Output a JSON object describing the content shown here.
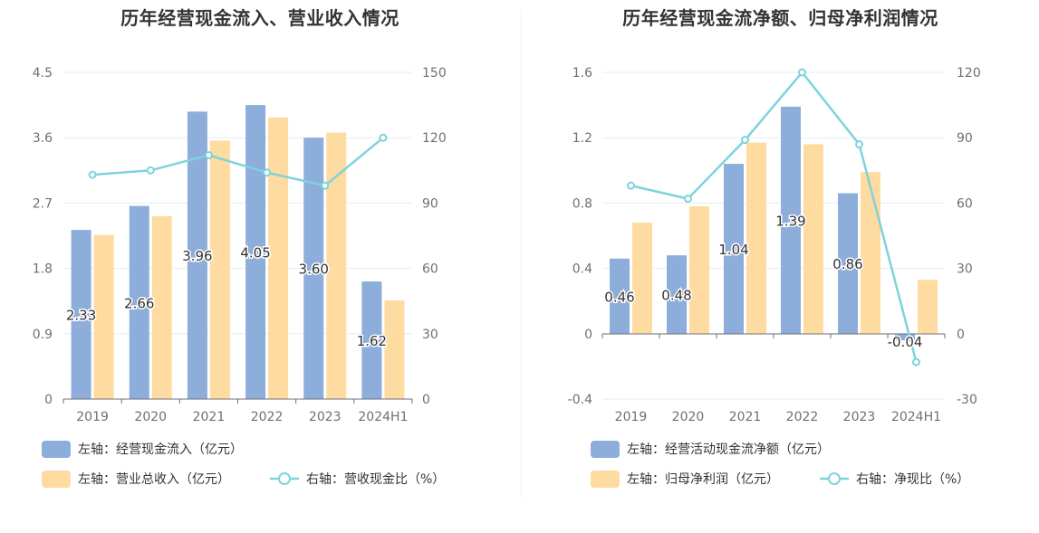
{
  "charts": [
    {
      "title": "历年经营现金流入、营业收入情况",
      "colors": {
        "bar1": "#8daddb",
        "bar2": "#fedba0",
        "line": "#7ed3dc",
        "grid": "#e8ebf3",
        "axis": "#6e7079"
      },
      "chart_data": {
        "type": "bar",
        "categories": [
          "2019",
          "2020",
          "2021",
          "2022",
          "2023",
          "2024H1"
        ],
        "series": [
          {
            "name": "左轴：经营现金流入（亿元）",
            "type": "bar",
            "axis": "left",
            "values": [
              2.33,
              2.66,
              3.96,
              4.05,
              3.6,
              1.62
            ],
            "labels": [
              "2.33",
              "2.66",
              "3.96",
              "4.05",
              "3.60",
              "1.62"
            ]
          },
          {
            "name": "左轴：营业总收入（亿元）",
            "type": "bar",
            "axis": "left",
            "values": [
              2.26,
              2.52,
              3.56,
              3.88,
              3.67,
              1.36
            ]
          },
          {
            "name": "右轴：营收现金比（%）",
            "type": "line",
            "axis": "right",
            "values": [
              103,
              105,
              112,
              104,
              98,
              120
            ]
          }
        ],
        "left_axis": {
          "min": 0,
          "max": 4.5,
          "ticks": [
            "0",
            "0.9",
            "1.8",
            "2.7",
            "3.6",
            "4.5"
          ]
        },
        "right_axis": {
          "min": 0,
          "max": 150,
          "ticks": [
            "0",
            "30",
            "60",
            "90",
            "120",
            "150"
          ]
        },
        "grid": true,
        "legend_position": "bottom-left"
      }
    },
    {
      "title": "历年经营现金流净额、归母净利润情况",
      "colors": {
        "bar1": "#8daddb",
        "bar2": "#fedba0",
        "line": "#7ed3dc",
        "grid": "#e8ebf3",
        "axis": "#6e7079"
      },
      "chart_data": {
        "type": "bar",
        "categories": [
          "2019",
          "2020",
          "2021",
          "2022",
          "2023",
          "2024H1"
        ],
        "series": [
          {
            "name": "左轴：经营活动现金流净额（亿元）",
            "type": "bar",
            "axis": "left",
            "values": [
              0.46,
              0.48,
              1.04,
              1.39,
              0.86,
              -0.04
            ],
            "labels": [
              "0.46",
              "0.48",
              "1.04",
              "1.39",
              "0.86",
              "-0.04"
            ]
          },
          {
            "name": "左轴：归母净利润（亿元）",
            "type": "bar",
            "axis": "left",
            "values": [
              0.68,
              0.78,
              1.17,
              1.16,
              0.99,
              0.33
            ]
          },
          {
            "name": "右轴：净现比（%）",
            "type": "line",
            "axis": "right",
            "values": [
              68,
              62,
              89,
              120,
              87,
              -13
            ]
          }
        ],
        "left_axis": {
          "min": -0.4,
          "max": 1.6,
          "ticks": [
            "-0.4",
            "0",
            "0.4",
            "0.8",
            "1.2",
            "1.6"
          ]
        },
        "right_axis": {
          "min": -30,
          "max": 120,
          "ticks": [
            "-30",
            "0",
            "30",
            "60",
            "90",
            "120"
          ]
        },
        "grid": true,
        "legend_position": "bottom-left"
      }
    }
  ]
}
